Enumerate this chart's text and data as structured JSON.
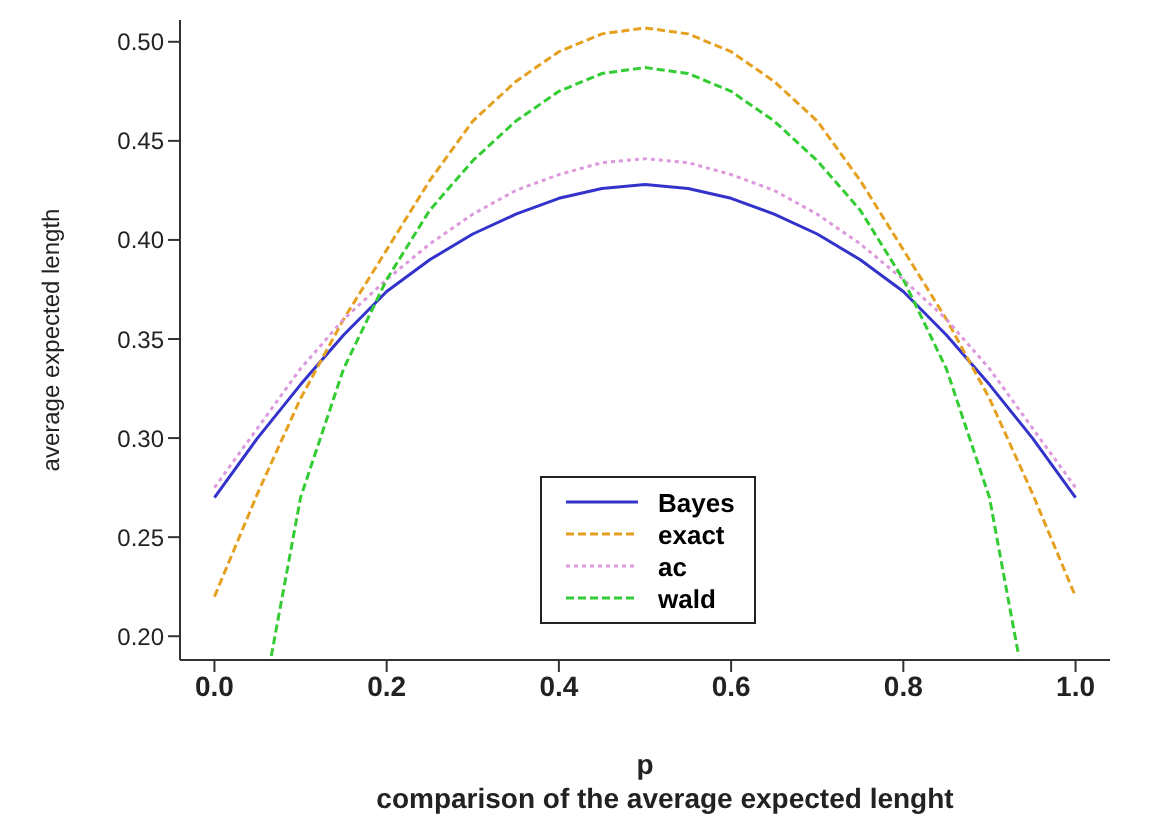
{
  "chart_data": {
    "type": "line",
    "xlabel": "p",
    "ylabel": "average expected length",
    "annotations": [
      "comparison of the average expected lenght"
    ],
    "xlim": [
      -0.04,
      1.04
    ],
    "xticks": [
      {
        "value": 0,
        "label": "0.0"
      },
      0.2,
      0.4,
      0.6,
      0.8,
      {
        "value": 1,
        "label": "1.0"
      }
    ],
    "ylim": [
      0.188,
      0.511
    ],
    "yticks": [
      {
        "value": 0.2,
        "label": "0.20"
      },
      0.25,
      {
        "value": 0.3,
        "label": "0.30"
      },
      0.35,
      {
        "value": 0.4,
        "label": "0.40"
      },
      0.45,
      {
        "value": 0.5,
        "label": "0.50"
      }
    ],
    "grid": false,
    "legend": "bottom",
    "marker": "none",
    "series": [
      {
        "name": "Bayes",
        "color": "#3333cc",
        "line_style": "solid",
        "x": [
          0,
          0.05,
          0.1,
          0.15,
          0.2,
          0.25,
          0.3,
          0.35,
          0.4,
          0.45,
          0.5,
          0.55,
          0.6,
          0.65,
          0.7,
          0.75,
          0.8,
          0.85,
          0.9,
          0.95,
          1
        ],
        "values": [
          0.27,
          0.3,
          0.327,
          0.352,
          0.374,
          0.39,
          0.403,
          0.413,
          0.421,
          0.426,
          0.428,
          0.426,
          0.421,
          0.413,
          0.403,
          0.39,
          0.374,
          0.352,
          0.327,
          0.3,
          0.27
        ]
      },
      {
        "name": "exact",
        "color": "#e6a020",
        "line_style": "dashed",
        "x": [
          0,
          0.05,
          0.1,
          0.15,
          0.2,
          0.25,
          0.3,
          0.35,
          0.4,
          0.45,
          0.5,
          0.55,
          0.6,
          0.65,
          0.7,
          0.75,
          0.8,
          0.85,
          0.9,
          0.95,
          1
        ],
        "values": [
          0.22,
          0.272,
          0.32,
          0.36,
          0.395,
          0.43,
          0.46,
          0.48,
          0.495,
          0.504,
          0.507,
          0.504,
          0.495,
          0.48,
          0.46,
          0.43,
          0.395,
          0.36,
          0.32,
          0.272,
          0.22
        ]
      },
      {
        "name": "ac",
        "color": "#dd99dd",
        "line_style": "dotted",
        "x": [
          0,
          0.05,
          0.1,
          0.15,
          0.2,
          0.25,
          0.3,
          0.35,
          0.4,
          0.45,
          0.5,
          0.55,
          0.6,
          0.65,
          0.7,
          0.75,
          0.8,
          0.85,
          0.9,
          0.95,
          1
        ],
        "values": [
          0.275,
          0.305,
          0.335,
          0.36,
          0.38,
          0.398,
          0.413,
          0.425,
          0.433,
          0.439,
          0.441,
          0.439,
          0.433,
          0.425,
          0.413,
          0.398,
          0.38,
          0.36,
          0.335,
          0.305,
          0.275
        ]
      },
      {
        "name": "wald",
        "color": "#33cc33",
        "line_style": "dashed",
        "x": [
          0.066,
          0.1,
          0.15,
          0.2,
          0.25,
          0.3,
          0.35,
          0.4,
          0.45,
          0.5,
          0.55,
          0.6,
          0.65,
          0.7,
          0.75,
          0.8,
          0.85,
          0.9,
          0.934
        ],
        "values": [
          0.19,
          0.27,
          0.335,
          0.38,
          0.415,
          0.44,
          0.46,
          0.475,
          0.484,
          0.487,
          0.484,
          0.475,
          0.46,
          0.44,
          0.415,
          0.38,
          0.335,
          0.27,
          0.19
        ]
      }
    ]
  }
}
